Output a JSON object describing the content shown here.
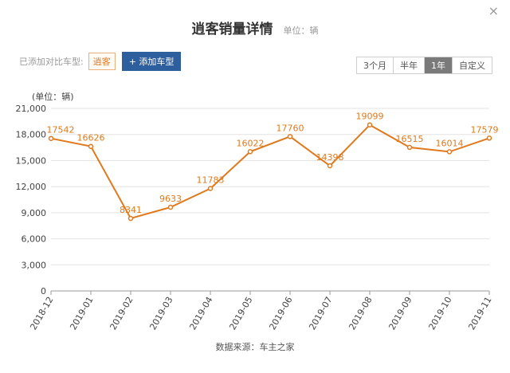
{
  "header": {
    "title": "逍客销量详情",
    "unit_text": "单位：辆",
    "close_glyph": "×"
  },
  "compare": {
    "label": "已添加对比车型:",
    "model_tag": "逍客",
    "add_button": "+ 添加车型"
  },
  "range_tabs": [
    {
      "label": "3个月",
      "active": false
    },
    {
      "label": "半年",
      "active": false
    },
    {
      "label": "1年",
      "active": true
    },
    {
      "label": "自定义",
      "active": false
    }
  ],
  "source_text": "数据来源：车主之家",
  "colors": {
    "line": "#e07a1f",
    "label": "#e07a1f",
    "grid": "#e3e3e3",
    "axis_text": "#444444"
  },
  "chart_data": {
    "type": "line",
    "ylabel": "(单位：辆)",
    "ylim": [
      0,
      21000
    ],
    "yticks": [
      0,
      3000,
      6000,
      9000,
      12000,
      15000,
      18000,
      21000
    ],
    "ytick_labels": [
      "0",
      "3,000",
      "6,000",
      "9,000",
      "12,000",
      "15,000",
      "18,000",
      "21,000"
    ],
    "categories": [
      "2018-12",
      "2019-01",
      "2019-02",
      "2019-03",
      "2019-04",
      "2019-05",
      "2019-06",
      "2019-07",
      "2019-08",
      "2019-09",
      "2019-10",
      "2019-11"
    ],
    "series": [
      {
        "values": [
          17542,
          16626,
          8341,
          9633,
          11783,
          16022,
          17760,
          14398,
          19099,
          16515,
          16014,
          17579
        ]
      }
    ],
    "grid": true
  }
}
